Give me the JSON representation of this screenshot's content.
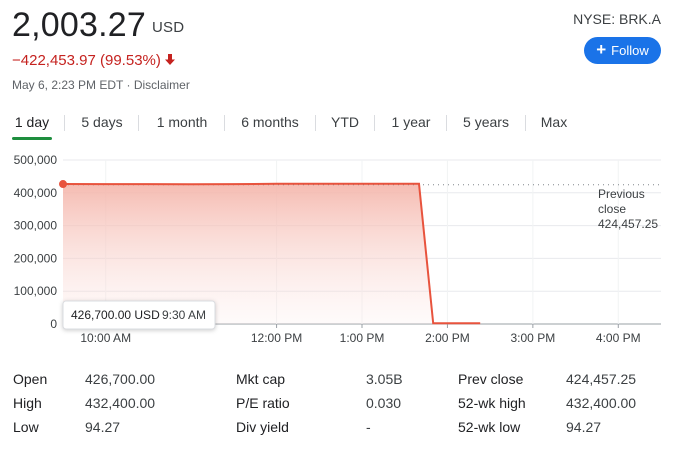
{
  "header": {
    "price": "2,003.27",
    "currency": "USD",
    "change": "−422,453.97 (99.53%)",
    "timestamp": "May 6, 2:23 PM EDT · Disclaimer",
    "ticker": "NYSE: BRK.A",
    "follow_label": "Follow",
    "down_arrow_icon": "arrow-down-icon",
    "plus_icon": "plus-icon",
    "down_color": "#c5221f",
    "accent_color": "#1a73e8"
  },
  "tabs": [
    {
      "label": "1 day",
      "active": true
    },
    {
      "label": "5 days",
      "active": false
    },
    {
      "label": "1 month",
      "active": false
    },
    {
      "label": "6 months",
      "active": false
    },
    {
      "label": "YTD",
      "active": false
    },
    {
      "label": "1 year",
      "active": false
    },
    {
      "label": "5 years",
      "active": false
    },
    {
      "label": "Max",
      "active": false
    }
  ],
  "chart_data": {
    "type": "area",
    "y_ticks": [
      "500,000",
      "400,000",
      "300,000",
      "200,000",
      "100,000",
      "0"
    ],
    "x_ticks": [
      "10:00 AM",
      "12:00 PM",
      "1:00 PM",
      "2:00 PM",
      "3:00 PM",
      "4:00 PM"
    ],
    "ylim": [
      0,
      500000
    ],
    "x_hours_range": [
      9.5,
      16.5
    ],
    "series": [
      {
        "x": [
          "9:30",
          "10:00",
          "10:30",
          "11:00",
          "11:30",
          "12:00",
          "12:30",
          "13:00",
          "13:30",
          "13:40",
          "13:50",
          "14:00",
          "14:23"
        ],
        "values": [
          426700,
          426500,
          426400,
          426300,
          426400,
          427500,
          427400,
          427600,
          427500,
          427500,
          2000,
          2003.27,
          2003.27
        ]
      }
    ],
    "previous_close_label_lines": [
      "Previous",
      "close"
    ],
    "previous_close_value": "424,457.25",
    "previous_close": 424457.25,
    "tooltip": {
      "value": "426,700.00 USD",
      "time": "9:30 AM"
    },
    "line_color": "#e8533d",
    "grid": true
  },
  "stats": [
    [
      {
        "label": "Open",
        "value": "426,700.00"
      },
      {
        "label": "Mkt cap",
        "value": "3.05B"
      },
      {
        "label": "Prev close",
        "value": "424,457.25"
      }
    ],
    [
      {
        "label": "High",
        "value": "432,400.00"
      },
      {
        "label": "P/E ratio",
        "value": "0.030"
      },
      {
        "label": "52-wk high",
        "value": "432,400.00"
      }
    ],
    [
      {
        "label": "Low",
        "value": "94.27"
      },
      {
        "label": "Div yield",
        "value": "-"
      },
      {
        "label": "52-wk low",
        "value": "94.27"
      }
    ]
  ]
}
